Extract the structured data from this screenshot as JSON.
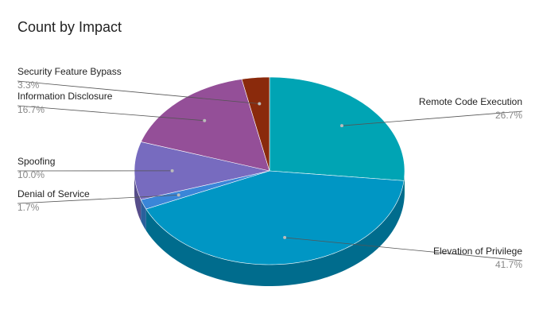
{
  "chart_data": {
    "type": "pie3d",
    "title": "Count by Impact",
    "categories": [
      "Remote Code Execution",
      "Elevation of Privilege",
      "Denial of Service",
      "Spoofing",
      "Information Disclosure",
      "Security Feature Bypass"
    ],
    "values": [
      26.7,
      41.7,
      1.7,
      10.0,
      16.7,
      3.3
    ],
    "value_labels": [
      "26.7%",
      "41.7%",
      "1.7%",
      "10.0%",
      "16.7%",
      "3.3%"
    ],
    "colors": [
      "#00a4b4",
      "#0096c4",
      "#3a86d8",
      "#776bbf",
      "#944f98",
      "#8a2a0c"
    ]
  }
}
